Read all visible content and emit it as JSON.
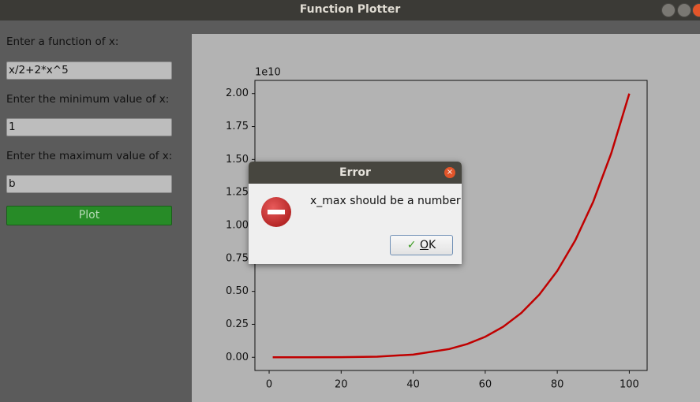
{
  "window": {
    "title": "Function Plotter"
  },
  "form": {
    "function_label": "Enter a function of x:",
    "function_value": "x/2+2*x^5",
    "min_label": "Enter the minimum value of x:",
    "min_value": "1",
    "max_label": "Enter the maximum value of x:",
    "max_value": "b",
    "plot_button": "Plot"
  },
  "chart_data": {
    "type": "line",
    "offset_text": "1e10",
    "color": "#c00000",
    "x": [
      1,
      10,
      20,
      30,
      40,
      50,
      55,
      60,
      65,
      70,
      75,
      80,
      85,
      90,
      95,
      100
    ],
    "values": [
      0,
      2e-05,
      0.00064,
      0.00486,
      0.0205,
      0.0625,
      0.1007,
      0.1555,
      0.232,
      0.336,
      0.475,
      0.655,
      0.887,
      1.181,
      1.548,
      2.0
    ],
    "xlim": [
      -3.95,
      104.95
    ],
    "ylim": [
      -0.1,
      2.1
    ],
    "xticks": [
      0,
      20,
      40,
      60,
      80,
      100
    ],
    "yticks": [
      {
        "value": 0,
        "label": "0.00"
      },
      {
        "value": 0.25,
        "label": "0.25"
      },
      {
        "value": 0.5,
        "label": "0.50"
      },
      {
        "value": 0.75,
        "label": "0.75"
      },
      {
        "value": 1,
        "label": "1.00"
      },
      {
        "value": 1.25,
        "label": "1.25"
      },
      {
        "value": 1.5,
        "label": "1.50"
      },
      {
        "value": 1.75,
        "label": "1.75"
      },
      {
        "value": 2,
        "label": "2.00"
      }
    ]
  },
  "dialog": {
    "title": "Error",
    "message": "x_max should be a number",
    "button": "OK"
  }
}
